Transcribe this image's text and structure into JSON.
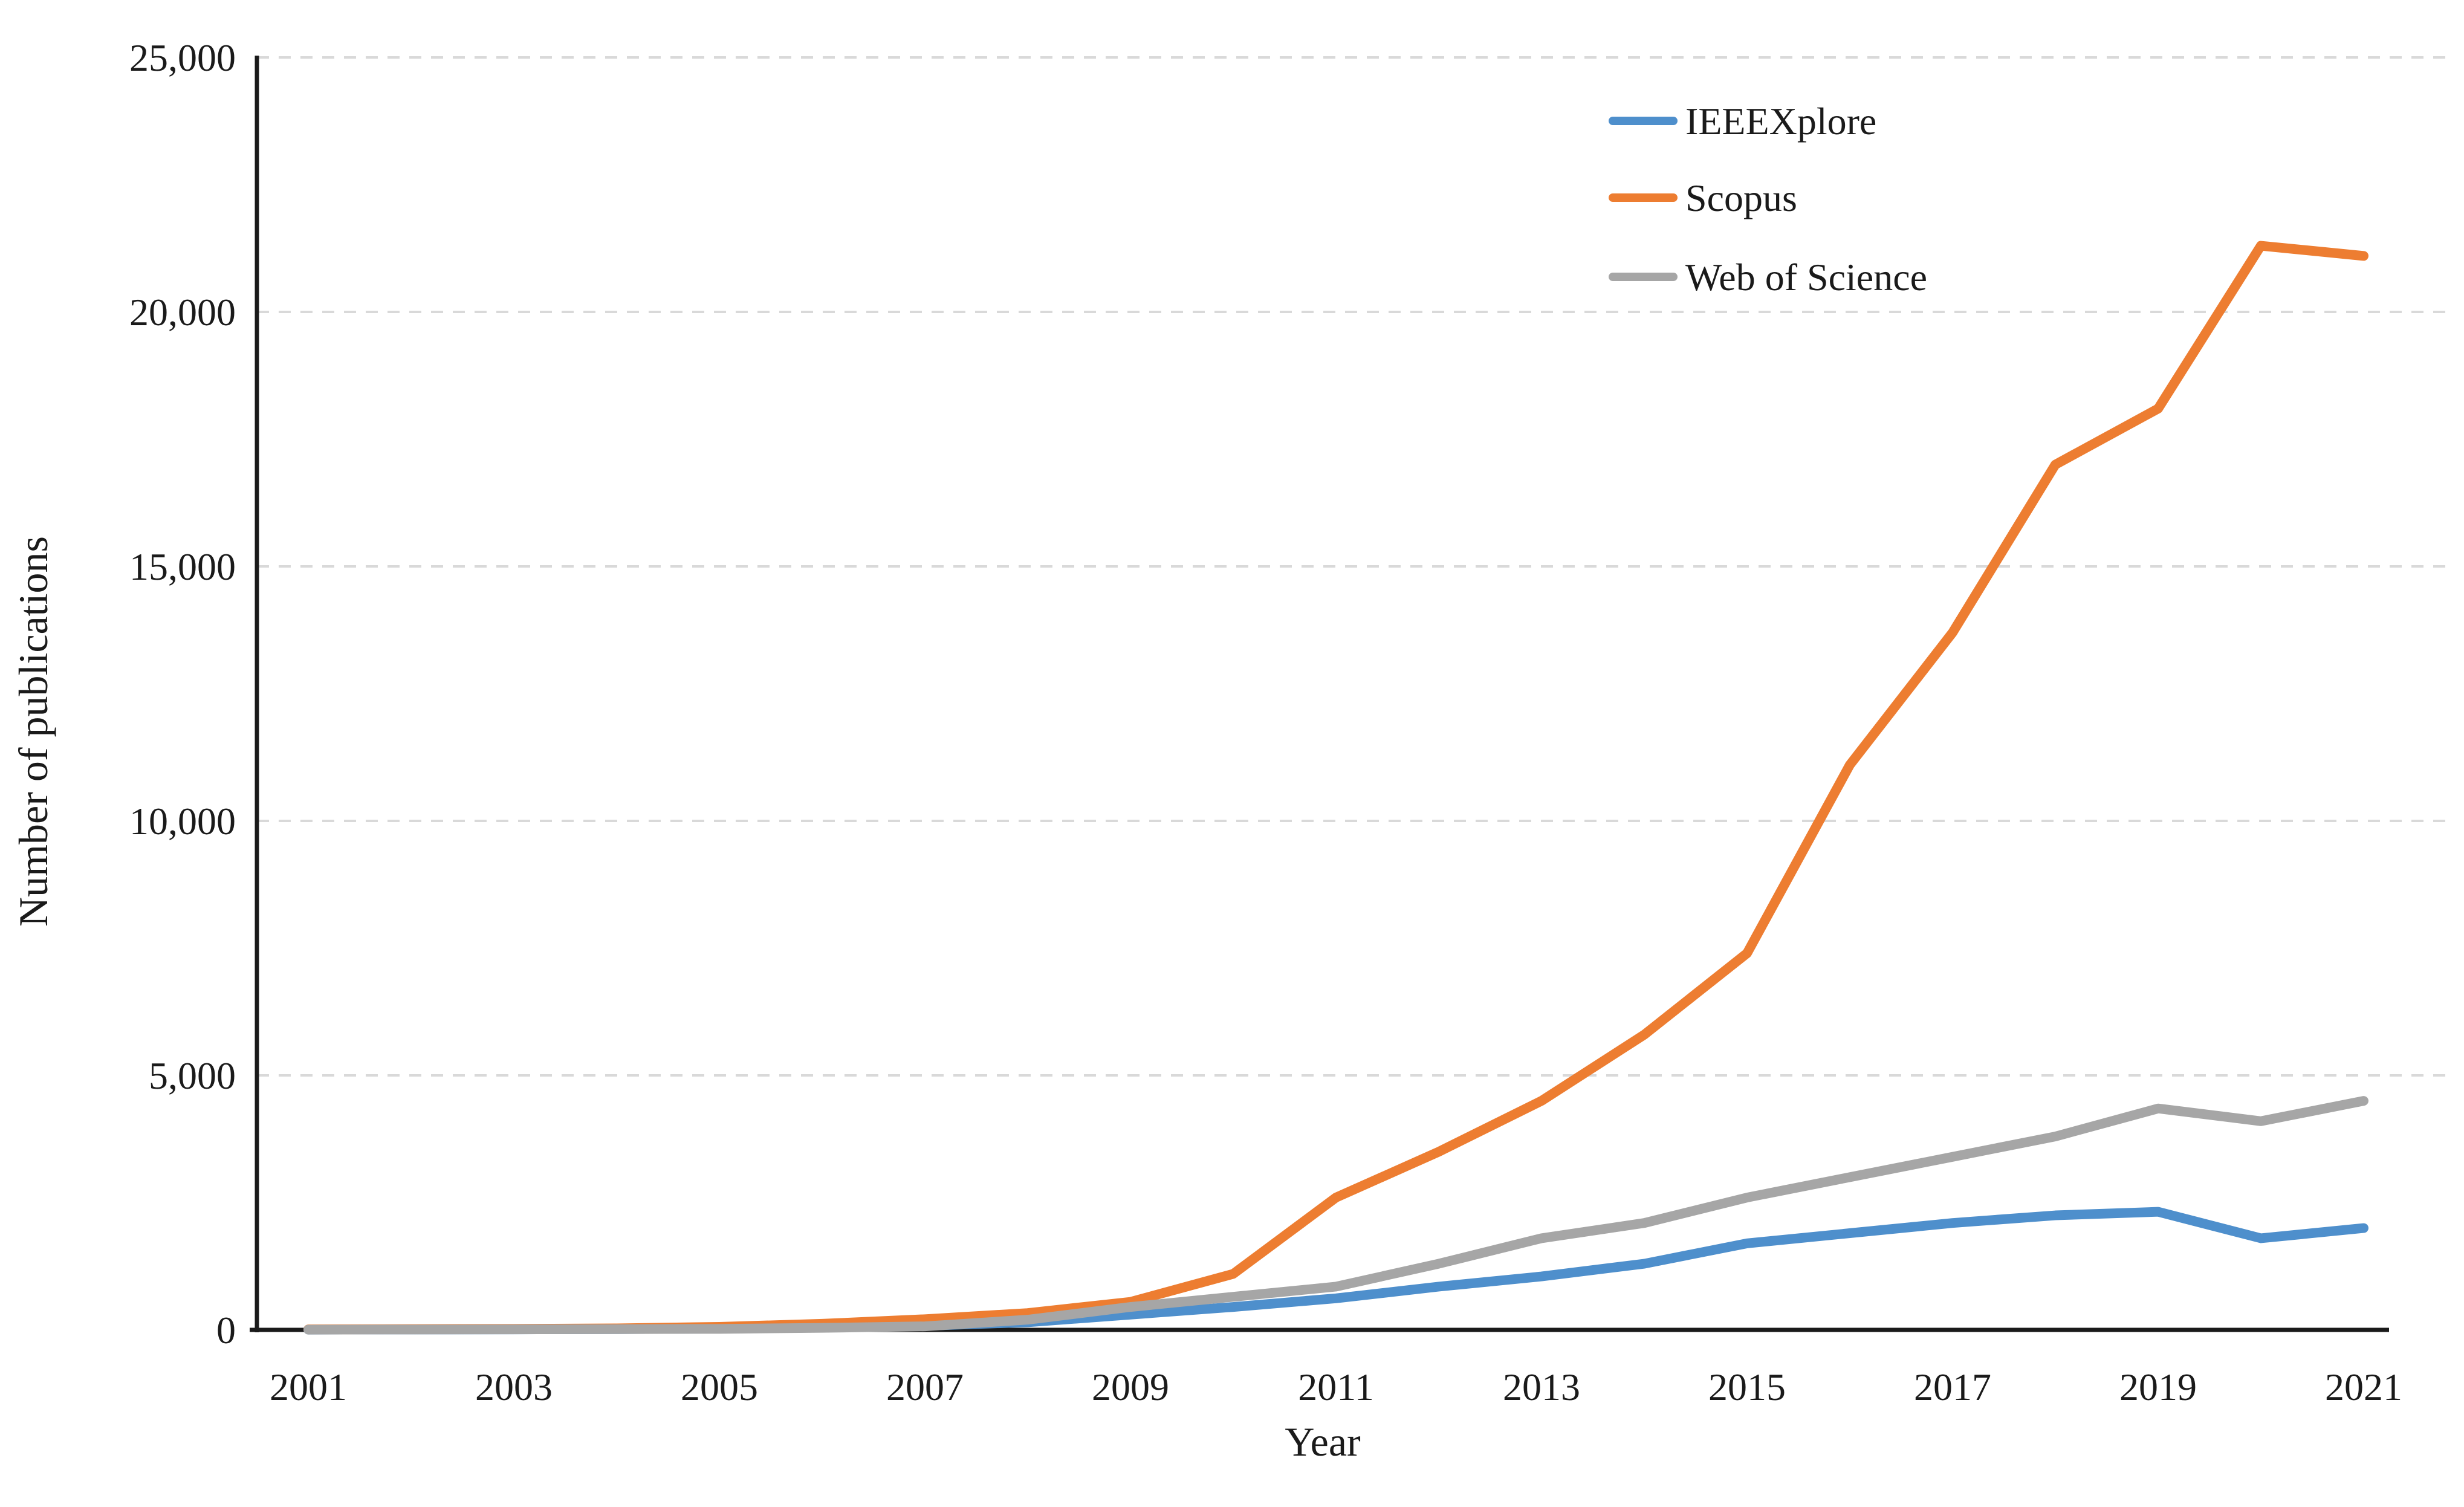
{
  "figure": {
    "background": "#ffffff",
    "text_color": "#1a1a1a",
    "axis_color": "#1a1a1a",
    "gridline_color": "#d9d9d9"
  },
  "chart_data": {
    "type": "line",
    "title": "",
    "xlabel": "Year",
    "ylabel": "Number of publications",
    "x": [
      2001,
      2002,
      2003,
      2004,
      2005,
      2006,
      2007,
      2008,
      2009,
      2010,
      2011,
      2012,
      2013,
      2014,
      2015,
      2016,
      2017,
      2018,
      2019,
      2020,
      2021
    ],
    "x_tick_labels": [
      "2001",
      "2003",
      "2005",
      "2007",
      "2009",
      "2011",
      "2013",
      "2015",
      "2017",
      "2019",
      "2021"
    ],
    "x_ticks": [
      2001,
      2003,
      2005,
      2007,
      2009,
      2011,
      2013,
      2015,
      2017,
      2019,
      2021
    ],
    "ylim": [
      0,
      25000
    ],
    "y_ticks": [
      0,
      5000,
      10000,
      15000,
      20000,
      25000
    ],
    "y_tick_labels": [
      "0",
      "5,000",
      "10,000",
      "15,000",
      "20,000",
      "25,000"
    ],
    "grid": "horizontal-dashed",
    "legend_position": "top-right-inside",
    "series": [
      {
        "name": "IEEEXplore",
        "color": "#4E8FCC",
        "values": [
          5,
          8,
          10,
          15,
          25,
          45,
          80,
          150,
          300,
          450,
          620,
          850,
          1050,
          1300,
          1700,
          1900,
          2100,
          2250,
          2320,
          1800,
          2000
        ]
      },
      {
        "name": "Scopus",
        "color": "#ED7D31",
        "values": [
          10,
          15,
          20,
          30,
          60,
          120,
          210,
          330,
          550,
          1100,
          2600,
          3500,
          4500,
          5800,
          7400,
          11100,
          13700,
          17000,
          18100,
          21300,
          21100
        ]
      },
      {
        "name": "Web of Science",
        "color": "#A6A6A6",
        "values": [
          5,
          8,
          10,
          15,
          20,
          40,
          70,
          200,
          450,
          650,
          850,
          1300,
          1800,
          2100,
          2600,
          3000,
          3400,
          3800,
          4350,
          4100,
          4500
        ]
      }
    ]
  }
}
